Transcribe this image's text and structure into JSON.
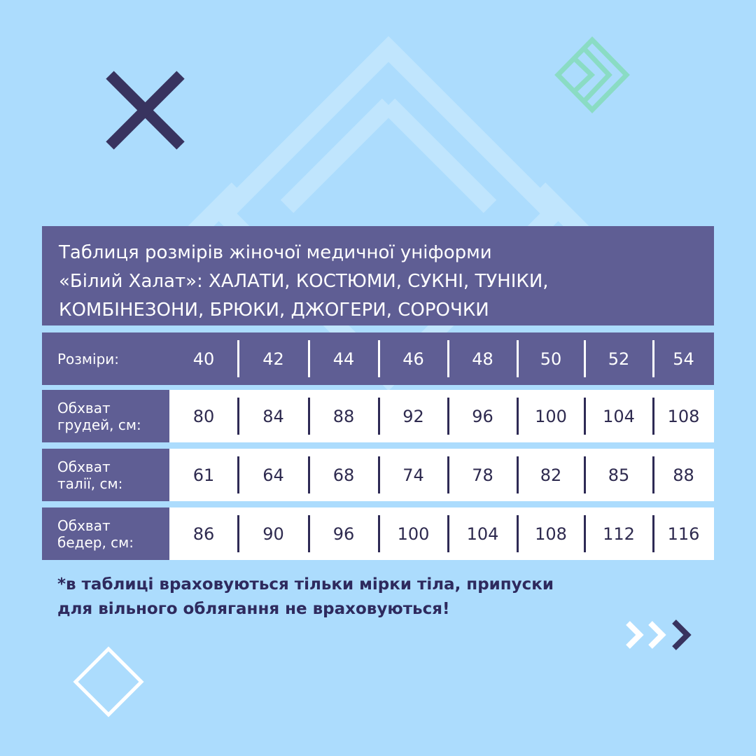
{
  "title_lines": [
    "Таблиця розмірів жіночої медичної уніформи",
    "«Білий Халат»:  ХАЛАТИ, КОСТЮМИ, СУКНІ, ТУНІКИ,",
    "КОМБІНЕЗОНИ, БРЮКИ, ДЖОГЕРИ, СОРОЧКИ"
  ],
  "table": {
    "header": {
      "label": "Розміри:",
      "values": [
        "40",
        "42",
        "44",
        "46",
        "48",
        "50",
        "52",
        "54"
      ]
    },
    "rows": [
      {
        "label_1": "Обхват",
        "label_2": "грудей, см:",
        "values": [
          "80",
          "84",
          "88",
          "92",
          "96",
          "100",
          "104",
          "108"
        ]
      },
      {
        "label_1": "Обхват",
        "label_2": "талії, см:",
        "values": [
          "61",
          "64",
          "68",
          "74",
          "78",
          "82",
          "85",
          "88"
        ]
      },
      {
        "label_1": "Обхват",
        "label_2": "бедер, см:",
        "values": [
          "86",
          "90",
          "96",
          "100",
          "104",
          "108",
          "112",
          "116"
        ]
      }
    ]
  },
  "note_lines": [
    "*в таблиці враховуються тільки мірки тіла, припуски",
    "для вільного облягання не враховуються!"
  ],
  "colors": {
    "background": "#acdcfd",
    "panel": "#5f5e94",
    "navy": "#38335f",
    "teal": "#8adcc4"
  },
  "icons": [
    "close-x-icon",
    "teal-diamond-chevron-icon",
    "chevrons-right-icon",
    "diamond-outline-icon"
  ]
}
